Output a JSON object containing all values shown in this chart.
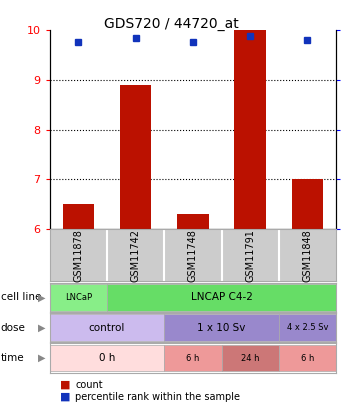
{
  "title": "GDS720 / 44720_at",
  "samples": [
    "GSM11878",
    "GSM11742",
    "GSM11748",
    "GSM11791",
    "GSM11848"
  ],
  "count_values": [
    6.5,
    8.9,
    6.3,
    10.0,
    7.0
  ],
  "percentile_values": [
    94,
    96,
    94,
    97,
    95
  ],
  "ylim_left": [
    6,
    10
  ],
  "ylim_right": [
    0,
    100
  ],
  "yticks_left": [
    6,
    7,
    8,
    9,
    10
  ],
  "yticks_right": [
    0,
    25,
    50,
    75,
    100
  ],
  "bar_color": "#bb1100",
  "dot_color": "#1133bb",
  "grid_ticks": [
    7,
    8,
    9
  ],
  "cell_line_data": [
    {
      "label": "LNCaP",
      "start": 0,
      "end": 1,
      "color": "#88ee88"
    },
    {
      "label": "LNCAP C4-2",
      "start": 1,
      "end": 5,
      "color": "#66dd66"
    }
  ],
  "dose_data": [
    {
      "label": "control",
      "start": 0,
      "end": 2,
      "color": "#ccbbee"
    },
    {
      "label": "1 x 10 Sv",
      "start": 2,
      "end": 4,
      "color": "#9988cc"
    },
    {
      "label": "4 x 2.5 Sv",
      "start": 4,
      "end": 5,
      "color": "#9988cc"
    }
  ],
  "time_data": [
    {
      "label": "0 h",
      "start": 0,
      "end": 2,
      "color": "#ffdddd"
    },
    {
      "label": "6 h",
      "start": 2,
      "end": 3,
      "color": "#ee9999"
    },
    {
      "label": "24 h",
      "start": 3,
      "end": 4,
      "color": "#cc7777"
    },
    {
      "label": "6 h",
      "start": 4,
      "end": 5,
      "color": "#ee9999"
    }
  ],
  "sample_bg": "#cccccc",
  "legend_bar_color": "#bb1100",
  "legend_dot_color": "#1133bb",
  "bg_color": "#ffffff",
  "row_labels": [
    "cell line",
    "dose",
    "time"
  ]
}
